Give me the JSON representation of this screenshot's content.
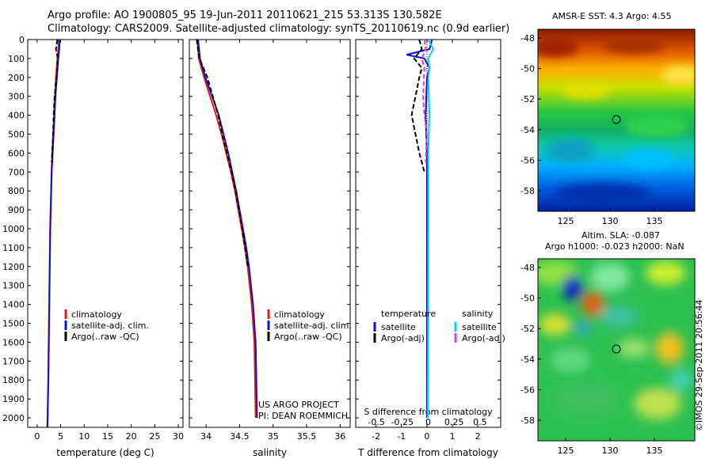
{
  "header": {
    "line1": "Argo profile: AO 1900805_95 19-Jun-2011 20110621_215 53.313S 130.582E",
    "line2": "Climatology: CARS2009. Satellite-adjusted climatology: synTS_20110619.nc (0.9d earlier)"
  },
  "colors": {
    "climatology": "#e31a1c",
    "satellite": "#1010d0",
    "argo": "#000000",
    "s_satellite": "#00d5e5",
    "s_argo": "#e03ad8"
  },
  "chart_data": [
    {
      "type": "line",
      "panel": "temperature",
      "xlabel": "temperature (deg C)",
      "ylabel": "",
      "xlim": [
        -2,
        31
      ],
      "ylim": [
        2050,
        0
      ],
      "xticks": [
        "0",
        "5",
        "10",
        "15",
        "20",
        "25",
        "30"
      ],
      "yticks": [
        "0",
        "100",
        "200",
        "300",
        "400",
        "500",
        "600",
        "700",
        "800",
        "900",
        "1000",
        "1100",
        "1200",
        "1300",
        "1400",
        "1500",
        "1600",
        "1700",
        "1800",
        "1900",
        "2000"
      ],
      "legend": [
        "climatology",
        "satellite-adj. clim.",
        "Argo(..raw -QC)"
      ],
      "series": [
        {
          "name": "climatology",
          "points": [
            [
              4.6,
              0
            ],
            [
              4.5,
              50
            ],
            [
              4.3,
              100
            ],
            [
              4.0,
              200
            ],
            [
              3.8,
              300
            ],
            [
              3.6,
              400
            ],
            [
              3.4,
              500
            ],
            [
              3.2,
              600
            ],
            [
              3.05,
              700
            ],
            [
              2.95,
              800
            ],
            [
              2.85,
              900
            ],
            [
              2.75,
              1000
            ],
            [
              2.65,
              1200
            ],
            [
              2.55,
              1400
            ],
            [
              2.45,
              1600
            ],
            [
              2.35,
              1800
            ],
            [
              2.2,
              2000
            ],
            [
              2.15,
              2050
            ]
          ]
        },
        {
          "name": "satellite-adj. clim.",
          "points": [
            [
              4.8,
              0
            ],
            [
              4.7,
              50
            ],
            [
              4.5,
              100
            ],
            [
              4.2,
              200
            ],
            [
              3.9,
              300
            ],
            [
              3.7,
              400
            ],
            [
              3.5,
              500
            ],
            [
              3.3,
              600
            ],
            [
              3.1,
              700
            ],
            [
              3.0,
              800
            ],
            [
              2.9,
              900
            ],
            [
              2.8,
              1000
            ],
            [
              2.7,
              1200
            ],
            [
              2.6,
              1400
            ],
            [
              2.5,
              1600
            ],
            [
              2.4,
              1800
            ],
            [
              2.25,
              2000
            ],
            [
              2.2,
              2050
            ]
          ]
        },
        {
          "name": "Argo(..raw -QC)",
          "points": [
            [
              4.3,
              0
            ],
            [
              4.0,
              50
            ],
            [
              4.4,
              100
            ],
            [
              4.1,
              200
            ],
            [
              3.7,
              300
            ],
            [
              3.5,
              400
            ],
            [
              3.4,
              500
            ],
            [
              3.2,
              600
            ],
            [
              3.1,
              650
            ]
          ]
        }
      ]
    },
    {
      "type": "line",
      "panel": "salinity",
      "xlabel": "salinity",
      "xlim": [
        33.75,
        36.15
      ],
      "ylim": [
        2050,
        0
      ],
      "xticks": [
        "34",
        "34.5",
        "35",
        "35.5",
        "36"
      ],
      "legend": [
        "climatology",
        "satellite-adj. clim.",
        "Argo(..raw -QC)"
      ],
      "series": [
        {
          "name": "climatology",
          "points": [
            [
              33.87,
              0
            ],
            [
              33.89,
              100
            ],
            [
              33.97,
              200
            ],
            [
              34.06,
              300
            ],
            [
              34.15,
              400
            ],
            [
              34.23,
              500
            ],
            [
              34.3,
              600
            ],
            [
              34.37,
              700
            ],
            [
              34.43,
              800
            ],
            [
              34.48,
              900
            ],
            [
              34.53,
              1000
            ],
            [
              34.58,
              1100
            ],
            [
              34.62,
              1200
            ],
            [
              34.65,
              1300
            ],
            [
              34.68,
              1400
            ],
            [
              34.7,
              1500
            ],
            [
              34.72,
              1600
            ],
            [
              34.73,
              1800
            ],
            [
              34.74,
              2000
            ]
          ]
        },
        {
          "name": "satellite-adj. clim.",
          "points": [
            [
              33.88,
              0
            ],
            [
              33.91,
              100
            ],
            [
              33.99,
              200
            ],
            [
              34.09,
              300
            ],
            [
              34.19,
              400
            ],
            [
              34.26,
              500
            ],
            [
              34.33,
              600
            ],
            [
              34.39,
              700
            ],
            [
              34.45,
              800
            ],
            [
              34.5,
              900
            ],
            [
              34.55,
              1000
            ],
            [
              34.6,
              1100
            ],
            [
              34.64,
              1200
            ],
            [
              34.67,
              1300
            ],
            [
              34.7,
              1400
            ],
            [
              34.72,
              1500
            ],
            [
              34.74,
              1600
            ],
            [
              34.75,
              1800
            ],
            [
              34.76,
              2000
            ]
          ]
        },
        {
          "name": "Argo(..raw -QC)",
          "points": [
            [
              33.86,
              0
            ],
            [
              33.9,
              100
            ],
            [
              34.02,
              200
            ],
            [
              34.1,
              300
            ],
            [
              34.18,
              400
            ],
            [
              34.24,
              500
            ],
            [
              34.31,
              600
            ],
            [
              34.38,
              700
            ],
            [
              34.44,
              800
            ],
            [
              34.49,
              900
            ],
            [
              34.54,
              1000
            ],
            [
              34.58,
              1100
            ],
            [
              34.62,
              1200
            ]
          ]
        }
      ]
    },
    {
      "type": "line",
      "panel": "difference",
      "xlabel": "T difference from climatology",
      "xlabel2": "S difference from climatology",
      "xlim": [
        -2.8,
        2.9
      ],
      "ylim": [
        2050,
        0
      ],
      "xticks": [
        "-2",
        "-1",
        "0",
        "1",
        "2"
      ],
      "xticks2": [
        "-0.5",
        "-0.25",
        "0",
        "0.25",
        "0.5"
      ],
      "legend": {
        "temperature_header": "temperature",
        "salinity_header": "salinity",
        "t_satellite": "satellite",
        "t_argo": "Argo(-adj)",
        "s_satellite": "satellite",
        "s_argo": "Argo(-adj)"
      },
      "series": [
        {
          "name": "temperature satellite",
          "points": [
            [
              0.2,
              0
            ],
            [
              0.1,
              50
            ],
            [
              -0.8,
              80
            ],
            [
              -0.1,
              100
            ],
            [
              0.1,
              150
            ],
            [
              0,
              200
            ],
            [
              -0.05,
              400
            ],
            [
              0,
              600
            ],
            [
              0,
              1000
            ],
            [
              0,
              2000
            ]
          ]
        },
        {
          "name": "temperature Argo(-adj)",
          "points": [
            [
              -0.3,
              0
            ],
            [
              -0.2,
              50
            ],
            [
              -0.5,
              100
            ],
            [
              -0.2,
              150
            ],
            [
              -0.3,
              200
            ],
            [
              -0.6,
              400
            ],
            [
              -0.3,
              600
            ],
            [
              -0.1,
              700
            ]
          ]
        },
        {
          "name": "salinity satellite",
          "points": [
            [
              0.05,
              0
            ],
            [
              0.25,
              50
            ],
            [
              0.05,
              100
            ],
            [
              0.1,
              150
            ],
            [
              0.05,
              200
            ],
            [
              0.1,
              400
            ],
            [
              0.05,
              600
            ],
            [
              0.05,
              1000
            ],
            [
              0.03,
              2000
            ]
          ]
        },
        {
          "name": "salinity Argo(-adj)",
          "points": [
            [
              -0.1,
              0
            ],
            [
              -0.05,
              50
            ],
            [
              -0.2,
              100
            ],
            [
              -0.1,
              150
            ],
            [
              -0.15,
              300
            ],
            [
              -0.1,
              400
            ],
            [
              0,
              500
            ],
            [
              -0.05,
              650
            ]
          ]
        }
      ]
    }
  ],
  "sst_map": {
    "title": "AMSR-E SST: 4.3 Argo: 4.55",
    "yticks": [
      "-48",
      "-50",
      "-52",
      "-54",
      "-56",
      "-58"
    ],
    "xticks": [
      "125",
      "130",
      "135"
    ]
  },
  "sla_map": {
    "title1": "Altim. SLA: -0.087",
    "title2": "Argo h1000: -0.023 h2000: NaN",
    "yticks": [
      "-48",
      "-50",
      "-52",
      "-54",
      "-56",
      "-58"
    ],
    "xticks": [
      "125",
      "130",
      "135"
    ]
  },
  "credit": {
    "line1": "US ARGO PROJECT",
    "line2": "PI: DEAN ROEMMICH"
  },
  "stamp": "©IMOS 29-Sep-2011 20:56:44"
}
